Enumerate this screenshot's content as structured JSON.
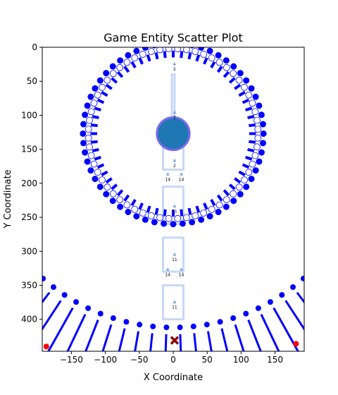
{
  "chart_data": {
    "type": "scatter",
    "title": "Game Entity Scatter Plot",
    "xlabel": "X Coordinate",
    "ylabel": "Y Coordinate",
    "xlim": [
      -193,
      193
    ],
    "ylim": [
      0,
      447
    ],
    "y_inverted": true,
    "grid": false,
    "xticks": [
      -150,
      -100,
      -50,
      0,
      50,
      100,
      150
    ],
    "yticks": [
      0,
      50,
      100,
      150,
      200,
      250,
      300,
      350,
      400
    ],
    "colors": {
      "ring_dots": "#0000ff",
      "inner_ticks": "#1f77b4",
      "hub_fill": "#1f77b4",
      "hub_edge": "#7b68ee",
      "path": "#c6d8f6",
      "red_points": "#ff0000",
      "cross": "#8b0000"
    },
    "ring": {
      "center": [
        0,
        127
      ],
      "outer_dot_radius": 133,
      "white_dot_radius": 125,
      "inner_tick_radius": [
        112,
        122
      ],
      "count": 60
    },
    "hub": {
      "x": 0,
      "y": 127,
      "radius": 24
    },
    "bottom_arc": {
      "center": [
        0,
        120
      ],
      "dot_radius": 292,
      "line_radius": [
        302,
        420
      ],
      "angle_range_deg": [
        -45,
        45
      ],
      "count": 24
    },
    "path_boxes": [
      {
        "x0": -2,
        "x1": 2,
        "y0": 40,
        "y1": 110
      },
      {
        "x0": -15,
        "x1": 15,
        "y0": 140,
        "y1": 180
      },
      {
        "x0": -15,
        "x1": 15,
        "y0": 205,
        "y1": 260
      },
      {
        "x0": -15,
        "x1": 15,
        "y0": 280,
        "y1": 330
      },
      {
        "x0": -15,
        "x1": 15,
        "y0": 350,
        "y1": 400
      }
    ],
    "markers": [
      {
        "x": 2,
        "y": 25,
        "label": "2"
      },
      {
        "x": 2,
        "y": 96,
        "label": "2"
      },
      {
        "x": 2,
        "y": 167,
        "label": "2"
      },
      {
        "x": -8,
        "y": 187,
        "label": "14"
      },
      {
        "x": 12,
        "y": 187,
        "label": "14"
      },
      {
        "x": 2,
        "y": 234,
        "label": "11"
      },
      {
        "x": 2,
        "y": 305,
        "label": "11"
      },
      {
        "x": -8,
        "y": 327,
        "label": "14"
      },
      {
        "x": 12,
        "y": 327,
        "label": "14"
      },
      {
        "x": 2,
        "y": 375,
        "label": "11"
      }
    ],
    "red_points": [
      {
        "x": -187,
        "y": 440
      },
      {
        "x": 181,
        "y": 436
      }
    ],
    "cross": {
      "x": 2,
      "y": 431
    }
  }
}
